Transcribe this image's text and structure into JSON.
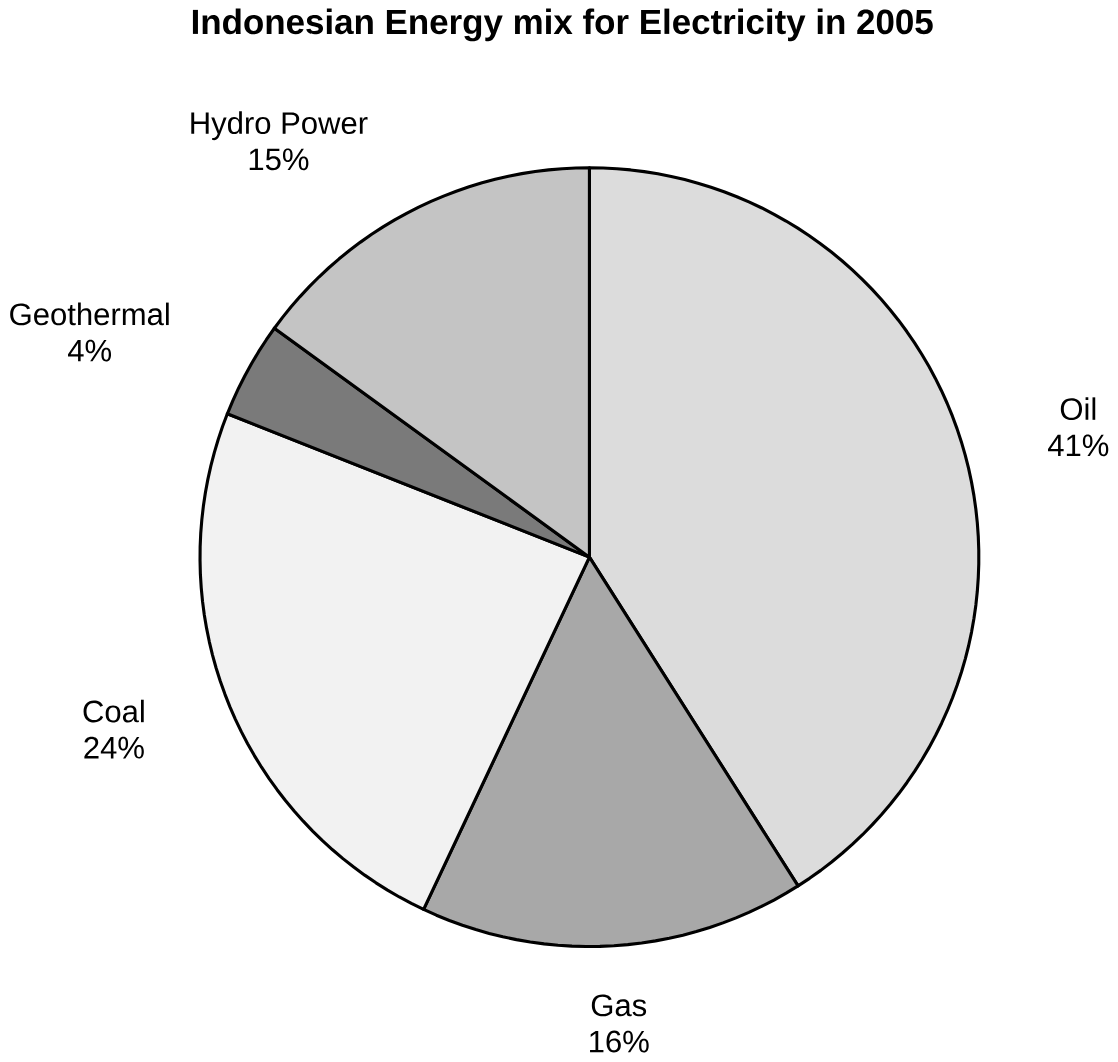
{
  "chart_data": {
    "type": "pie",
    "title": "Indonesian Energy mix for Electricity in 2005",
    "categories": [
      "Oil",
      "Gas",
      "Coal",
      "Geothermal",
      "Hydro Power"
    ],
    "values": [
      41,
      16,
      24,
      4,
      15
    ],
    "value_labels": [
      "41%",
      "16%",
      "24%",
      "4%",
      "15%"
    ],
    "colors": [
      "#dcdcdc",
      "#a8a8a8",
      "#f2f2f2",
      "#7a7a7a",
      "#c4c4c4"
    ]
  }
}
